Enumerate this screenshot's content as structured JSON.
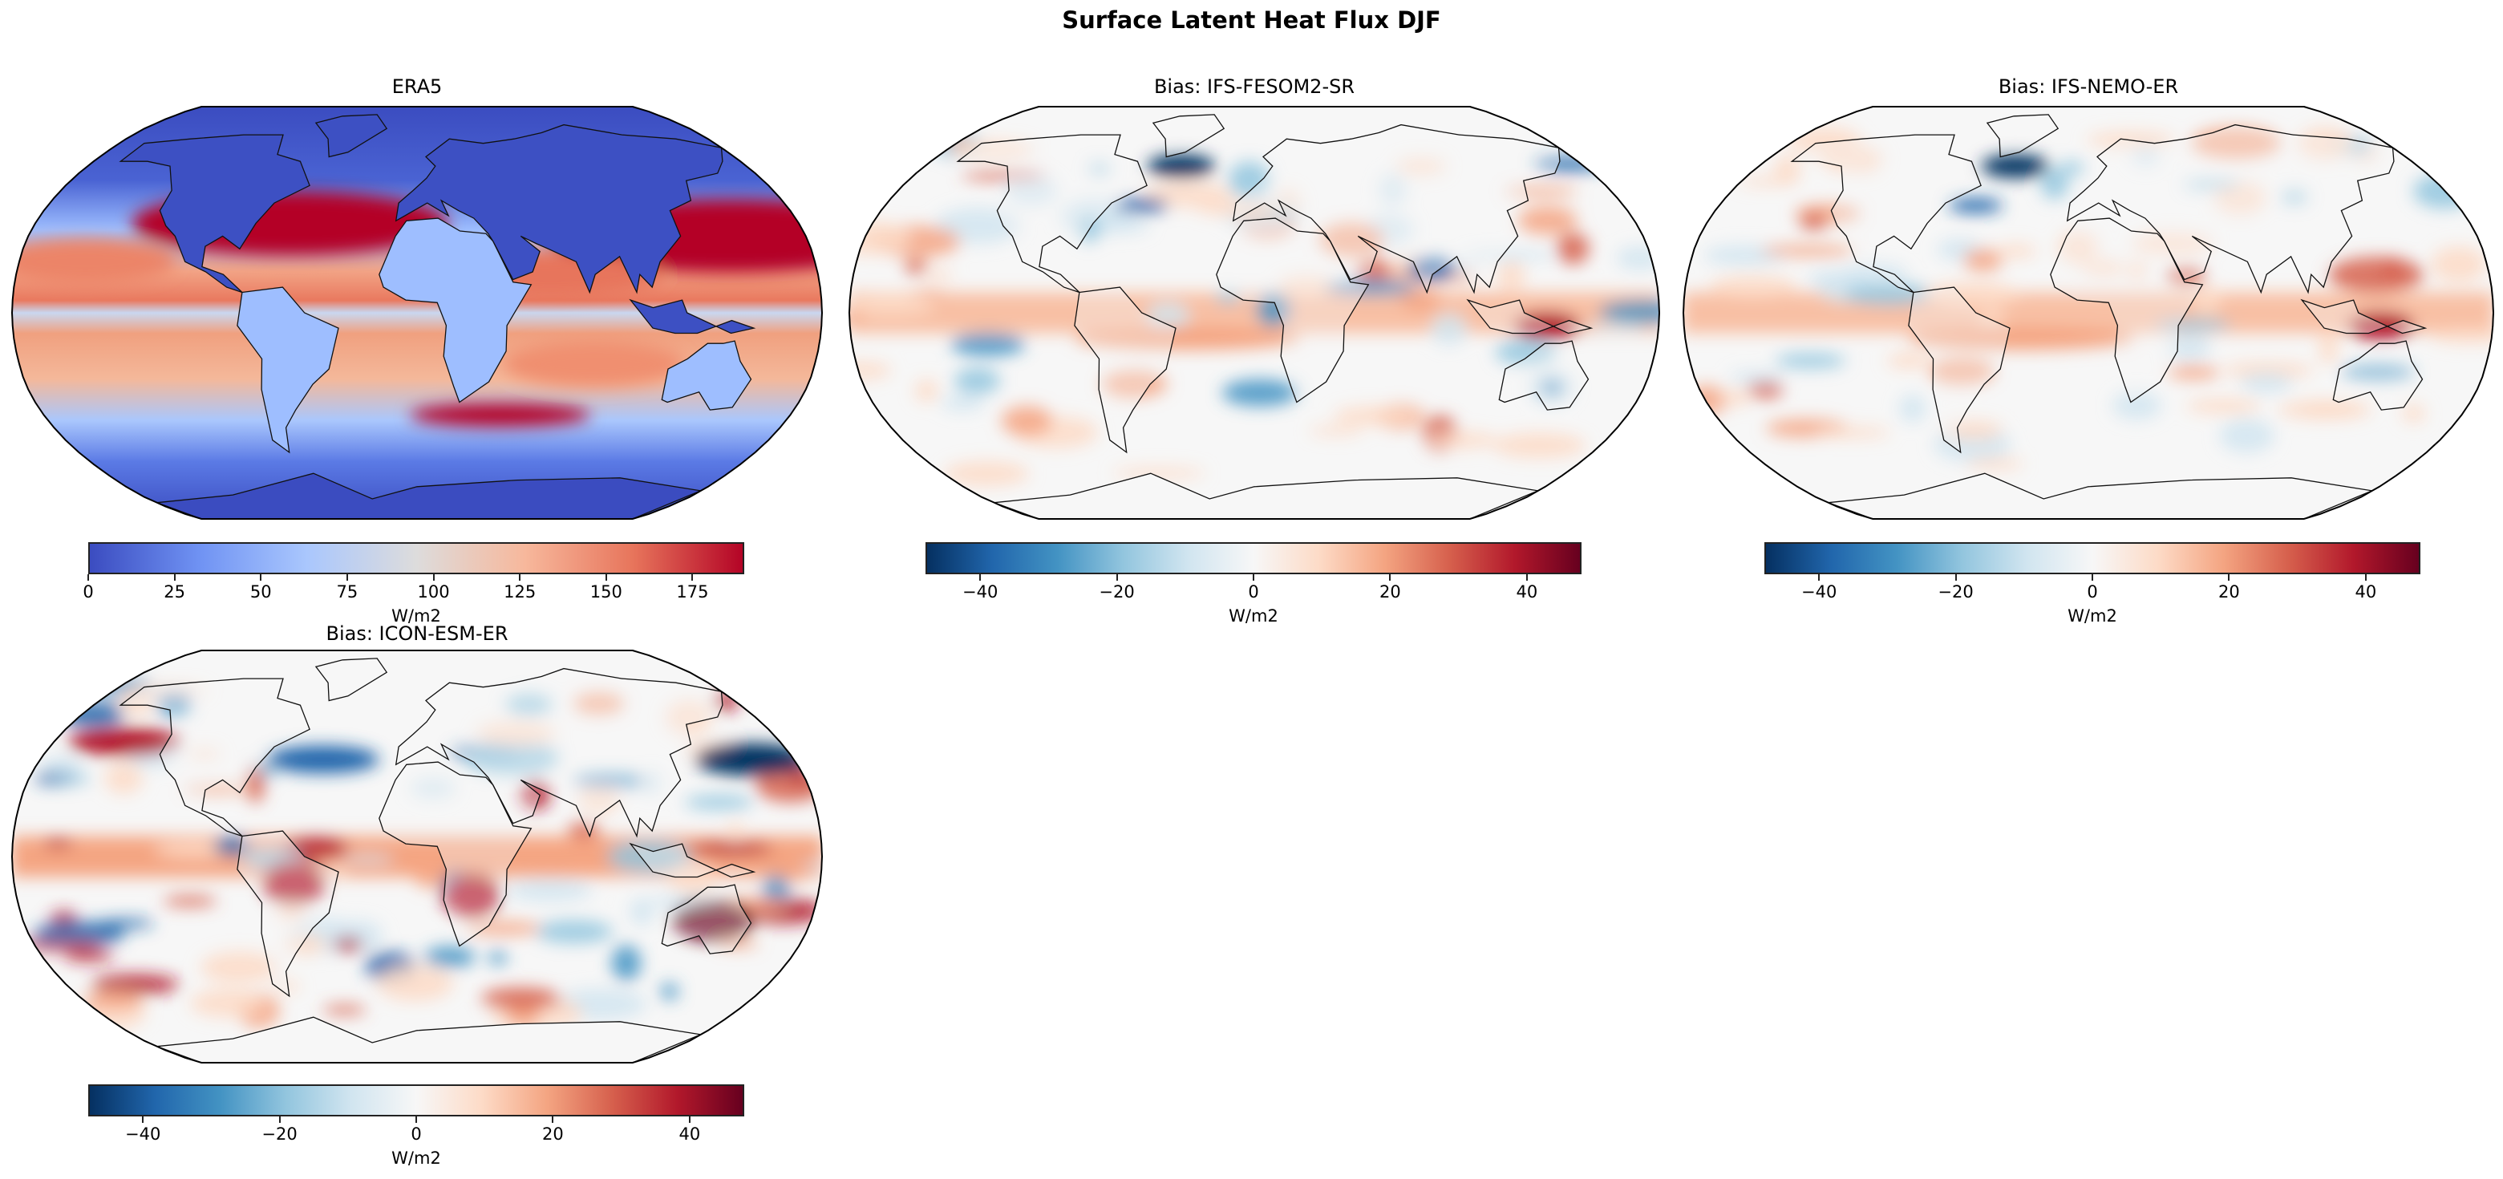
{
  "figure_title": "Surface Latent Heat Flux DJF",
  "chart_data": [
    {
      "type": "heatmap",
      "title": "ERA5",
      "projection": "Robinson",
      "colormap": "coolwarm",
      "colorbar": {
        "label": "W/m2",
        "range": [
          0,
          190
        ],
        "ticks": [
          0,
          25,
          50,
          75,
          100,
          125,
          150,
          175
        ],
        "tick_labels": [
          "0",
          "25",
          "50",
          "75",
          "100",
          "125",
          "150",
          "175"
        ],
        "colors": [
          "#3b4cc0",
          "#6f92f3",
          "#aac7fd",
          "#dddcdc",
          "#f7b89c",
          "#e7745b",
          "#b40426"
        ]
      }
    },
    {
      "type": "heatmap",
      "title": "Bias: IFS-FESOM2-SR",
      "projection": "Robinson",
      "colormap": "RdBu_r",
      "colorbar": {
        "label": "W/m2",
        "range": [
          -48,
          48
        ],
        "ticks": [
          -40,
          -20,
          0,
          20,
          40
        ],
        "tick_labels": [
          "−40",
          "−20",
          "0",
          "20",
          "40"
        ],
        "colors": [
          "#053061",
          "#2166ac",
          "#4393c3",
          "#92c5de",
          "#d1e5f0",
          "#f7f7f7",
          "#fddbc7",
          "#f4a582",
          "#d6604d",
          "#b2182b",
          "#67001f"
        ]
      }
    },
    {
      "type": "heatmap",
      "title": "Bias: IFS-NEMO-ER",
      "projection": "Robinson",
      "colormap": "RdBu_r",
      "colorbar": {
        "label": "W/m2",
        "range": [
          -48,
          48
        ],
        "ticks": [
          -40,
          -20,
          0,
          20,
          40
        ],
        "tick_labels": [
          "−40",
          "−20",
          "0",
          "20",
          "40"
        ],
        "colors": [
          "#053061",
          "#2166ac",
          "#4393c3",
          "#92c5de",
          "#d1e5f0",
          "#f7f7f7",
          "#fddbc7",
          "#f4a582",
          "#d6604d",
          "#b2182b",
          "#67001f"
        ]
      }
    },
    {
      "type": "heatmap",
      "title": "Bias: ICON-ESM-ER",
      "projection": "Robinson",
      "colormap": "RdBu_r",
      "colorbar": {
        "label": "W/m2",
        "range": [
          -48,
          48
        ],
        "ticks": [
          -40,
          -20,
          0,
          20,
          40
        ],
        "tick_labels": [
          "−40",
          "−20",
          "0",
          "20",
          "40"
        ],
        "colors": [
          "#053061",
          "#2166ac",
          "#4393c3",
          "#92c5de",
          "#d1e5f0",
          "#f7f7f7",
          "#fddbc7",
          "#f4a582",
          "#d6604d",
          "#b2182b",
          "#67001f"
        ]
      }
    }
  ]
}
